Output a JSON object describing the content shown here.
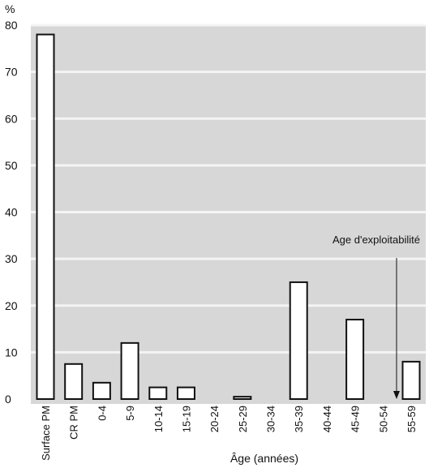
{
  "chart_data": {
    "type": "bar",
    "unit_label": "%",
    "xlabel": "Âge (années)",
    "ylabel": "",
    "ylim": [
      0,
      80
    ],
    "yticks": [
      0,
      10,
      20,
      30,
      40,
      50,
      60,
      70,
      80
    ],
    "grid": true,
    "categories": [
      "Surface PM",
      "CR PM",
      "0-4",
      "5-9",
      "10-14",
      "15-19",
      "20-24",
      "25-29",
      "30-34",
      "35-39",
      "40-44",
      "45-49",
      "50-54",
      "55-59"
    ],
    "values": [
      78,
      7.5,
      3.5,
      12,
      2.5,
      2.5,
      0,
      0.5,
      0,
      25,
      0,
      17,
      0,
      8
    ],
    "annotation": {
      "text": "Age d'exploitabilité",
      "category": "55-59"
    },
    "colors": {
      "bar_fill": "#ffffff",
      "bar_stroke": "#111111",
      "background": "#d7d7d7",
      "grid": "#f4f4f4"
    }
  }
}
